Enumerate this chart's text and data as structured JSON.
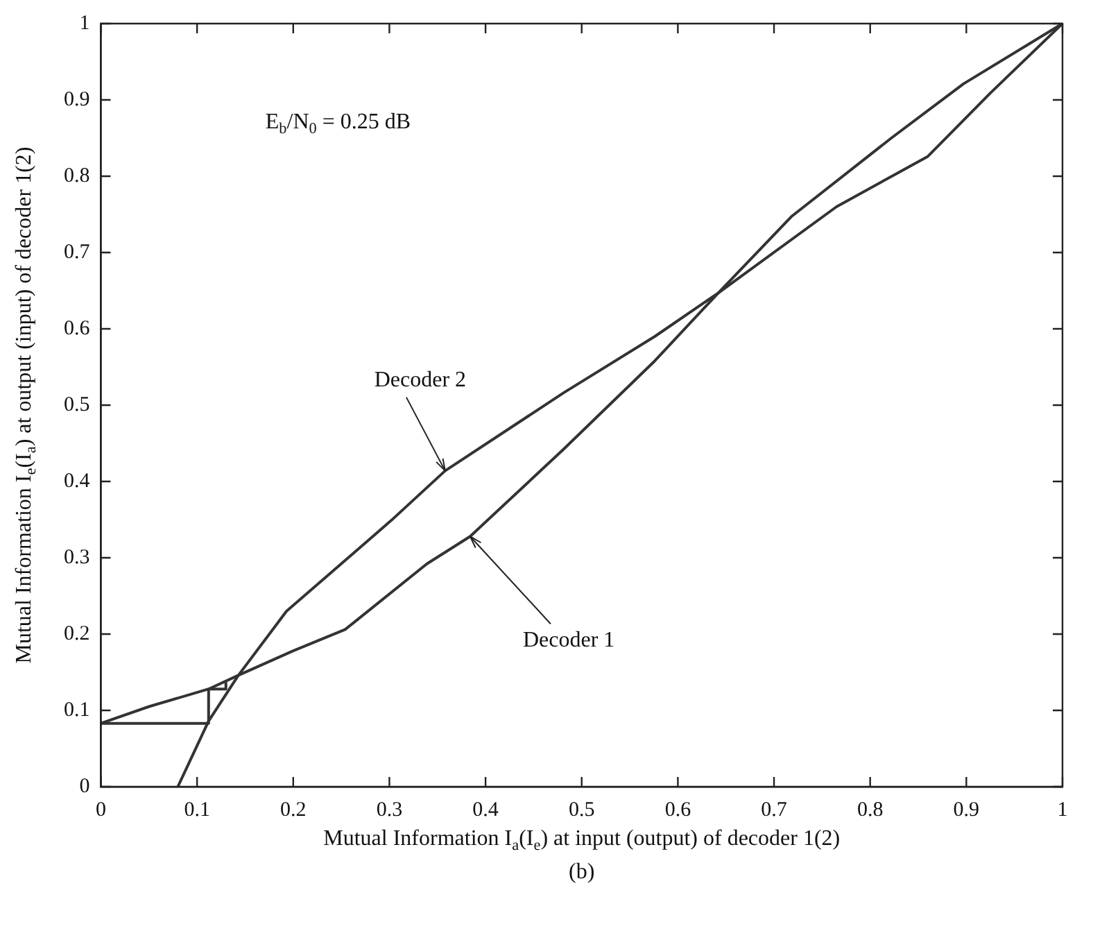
{
  "chart_data": {
    "type": "line",
    "xlabel": "Mutual Information I$_{a}$(I$_{e}$) at input (output) of decoder 1(2)",
    "ylabel": "Mutual Information I$_{e}$(I$_{a}$) at output (input) of decoder 1(2)",
    "xlim": [
      0,
      1
    ],
    "ylim": [
      0,
      1
    ],
    "xticks": [
      0,
      0.1,
      0.2,
      0.3,
      0.4,
      0.5,
      0.6,
      0.7,
      0.8,
      0.9,
      1
    ],
    "yticks": [
      0,
      0.1,
      0.2,
      0.3,
      0.4,
      0.5,
      0.6,
      0.7,
      0.8,
      0.9,
      1
    ],
    "grid": false,
    "legend": false,
    "marker": "none",
    "line_style": "solid",
    "series": [
      {
        "color": "#333333",
        "x": [
          0,
          0.05,
          0.112,
          0.143,
          0.2,
          0.254,
          0.339,
          0.384,
          0.481,
          0.576,
          0.642,
          0.718,
          0.822,
          0.897,
          1
        ],
        "values": [
          0.083,
          0.105,
          0.128,
          0.146,
          0.178,
          0.206,
          0.292,
          0.328,
          0.442,
          0.558,
          0.647,
          0.747,
          0.85,
          0.921,
          1
        ]
      },
      {
        "color": "#333333",
        "x": [
          0.08,
          0.112,
          0.143,
          0.193,
          0.302,
          0.358,
          0.481,
          0.576,
          0.642,
          0.765,
          0.86,
          0.925,
          1
        ],
        "values": [
          0,
          0.086,
          0.146,
          0.23,
          0.349,
          0.414,
          0.516,
          0.59,
          0.647,
          0.76,
          0.826,
          0.909,
          1
        ]
      },
      {
        "color": "#333333",
        "x": [
          0,
          0.112,
          0.112,
          0.13,
          0.13
        ],
        "values": [
          0.083,
          0.083,
          0.128,
          0.128,
          0.137
        ]
      }
    ],
    "annotations": [
      "E$_{b}$/N$_{0}$ = 0.25 dB",
      {
        "text": "Decoder 2",
        "x": 0.358,
        "y": 0.414
      },
      {
        "text": "Decoder 1",
        "x": 0.384,
        "y": 0.328
      },
      "(b)"
    ]
  }
}
